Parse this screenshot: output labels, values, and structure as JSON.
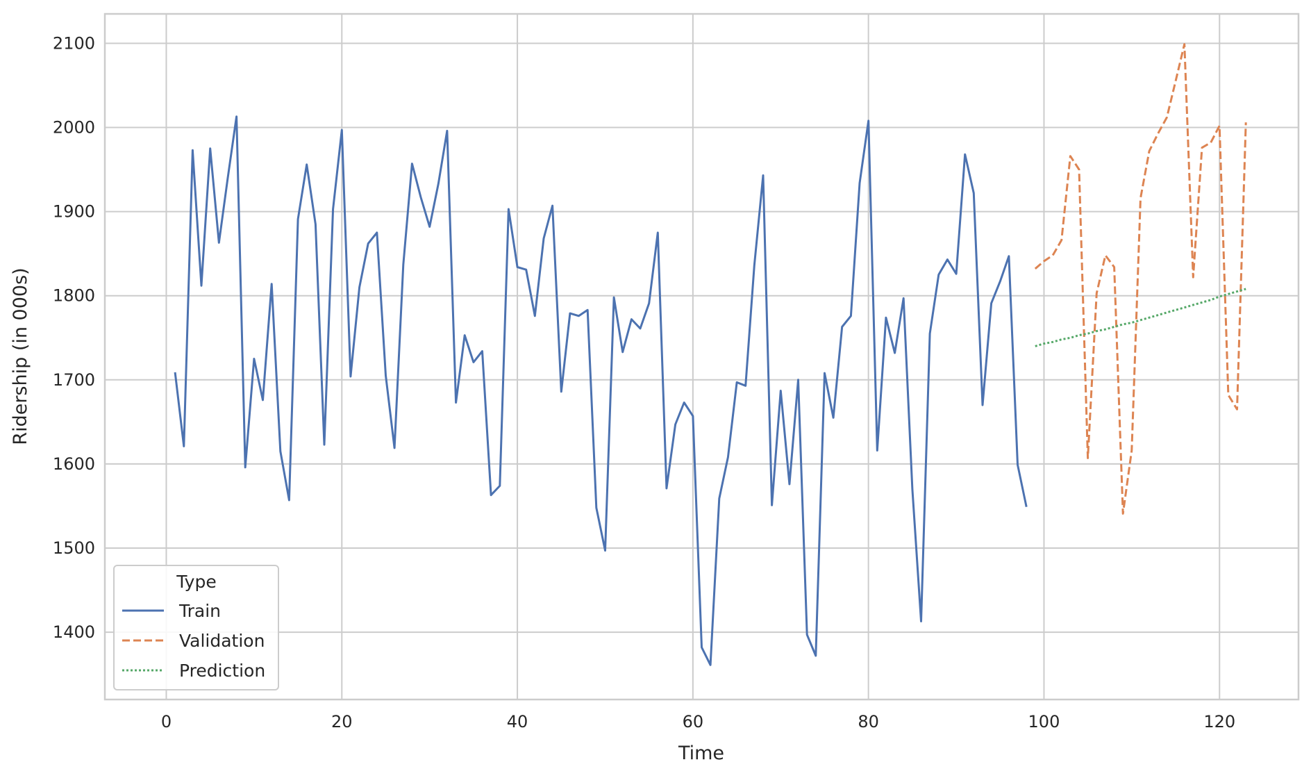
{
  "chart_data": {
    "type": "line",
    "xlabel": "Time",
    "ylabel": "Ridership (in 000s)",
    "xlim": [
      -7,
      129
    ],
    "ylim": [
      1320,
      2135
    ],
    "xticks": [
      0,
      20,
      40,
      60,
      80,
      100,
      120
    ],
    "yticks": [
      1400,
      1500,
      1600,
      1700,
      1800,
      1900,
      2000,
      2100
    ],
    "grid": true,
    "legend": {
      "title": "Type",
      "placement": "lower-left"
    },
    "series": [
      {
        "name": "Train",
        "color": "#4c72b0",
        "style": "solid",
        "x": [
          1,
          2,
          3,
          4,
          5,
          6,
          7,
          8,
          9,
          10,
          11,
          12,
          13,
          14,
          15,
          16,
          17,
          18,
          19,
          20,
          21,
          22,
          23,
          24,
          25,
          26,
          27,
          28,
          29,
          30,
          31,
          32,
          33,
          34,
          35,
          36,
          37,
          38,
          39,
          40,
          41,
          42,
          43,
          44,
          45,
          46,
          47,
          48,
          49,
          50,
          51,
          52,
          53,
          54,
          55,
          56,
          57,
          58,
          59,
          60,
          61,
          62,
          63,
          64,
          65,
          66,
          67,
          68,
          69,
          70,
          71,
          72,
          73,
          74,
          75,
          76,
          77,
          78,
          79,
          80,
          81,
          82,
          83,
          84,
          85,
          86,
          87,
          88,
          89,
          90,
          91,
          92,
          93,
          94,
          95,
          96,
          97,
          98
        ],
        "values": [
          1709,
          1621,
          1973,
          1812,
          1975,
          1863,
          1940,
          2013,
          1596,
          1725,
          1676,
          1814,
          1615,
          1557,
          1891,
          1956,
          1885,
          1623,
          1903,
          1997,
          1704,
          1810,
          1862,
          1875,
          1705,
          1619,
          1837,
          1957,
          1917,
          1882,
          1933,
          1996,
          1673,
          1753,
          1721,
          1734,
          1563,
          1574,
          1903,
          1834,
          1831,
          1776,
          1868,
          1907,
          1686,
          1779,
          1776,
          1783,
          1548,
          1497,
          1798,
          1733,
          1772,
          1761,
          1791,
          1875,
          1571,
          1647,
          1673,
          1657,
          1382,
          1361,
          1559,
          1608,
          1697,
          1693,
          1836,
          1943,
          1551,
          1687,
          1576,
          1700,
          1397,
          1372,
          1708,
          1655,
          1763,
          1776,
          1934,
          2008,
          1616,
          1774,
          1732,
          1797,
          1570,
          1413,
          1755,
          1825,
          1843,
          1826,
          1968,
          1922,
          1670,
          1791,
          1817,
          1847,
          1599,
          1549
        ]
      },
      {
        "name": "Validation",
        "color": "#dd8452",
        "style": "dashed",
        "x": [
          99,
          100,
          101,
          102,
          103,
          104,
          105,
          106,
          107,
          108,
          109,
          110,
          111,
          112,
          113,
          114,
          115,
          116,
          117,
          118,
          119,
          120,
          121,
          122,
          123
        ],
        "values": [
          1832,
          1841,
          1848,
          1866,
          1966,
          1950,
          1607,
          1803,
          1848,
          1834,
          1541,
          1616,
          1916,
          1972,
          1993,
          2012,
          2055,
          2099,
          1822,
          1976,
          1982,
          2002,
          1682,
          1665,
          2006
        ]
      },
      {
        "name": "Prediction",
        "color": "#55a868",
        "style": "dotted",
        "x": [
          99,
          100,
          101,
          102,
          103,
          104,
          105,
          106,
          107,
          108,
          109,
          110,
          111,
          112,
          113,
          114,
          115,
          116,
          117,
          118,
          119,
          120,
          121,
          122,
          123
        ],
        "values": [
          1740,
          1743,
          1745,
          1748,
          1750,
          1753,
          1755,
          1758,
          1760,
          1763,
          1766,
          1768,
          1771,
          1774,
          1777,
          1780,
          1783,
          1786,
          1789,
          1792,
          1795,
          1799,
          1802,
          1805,
          1808
        ]
      }
    ]
  }
}
